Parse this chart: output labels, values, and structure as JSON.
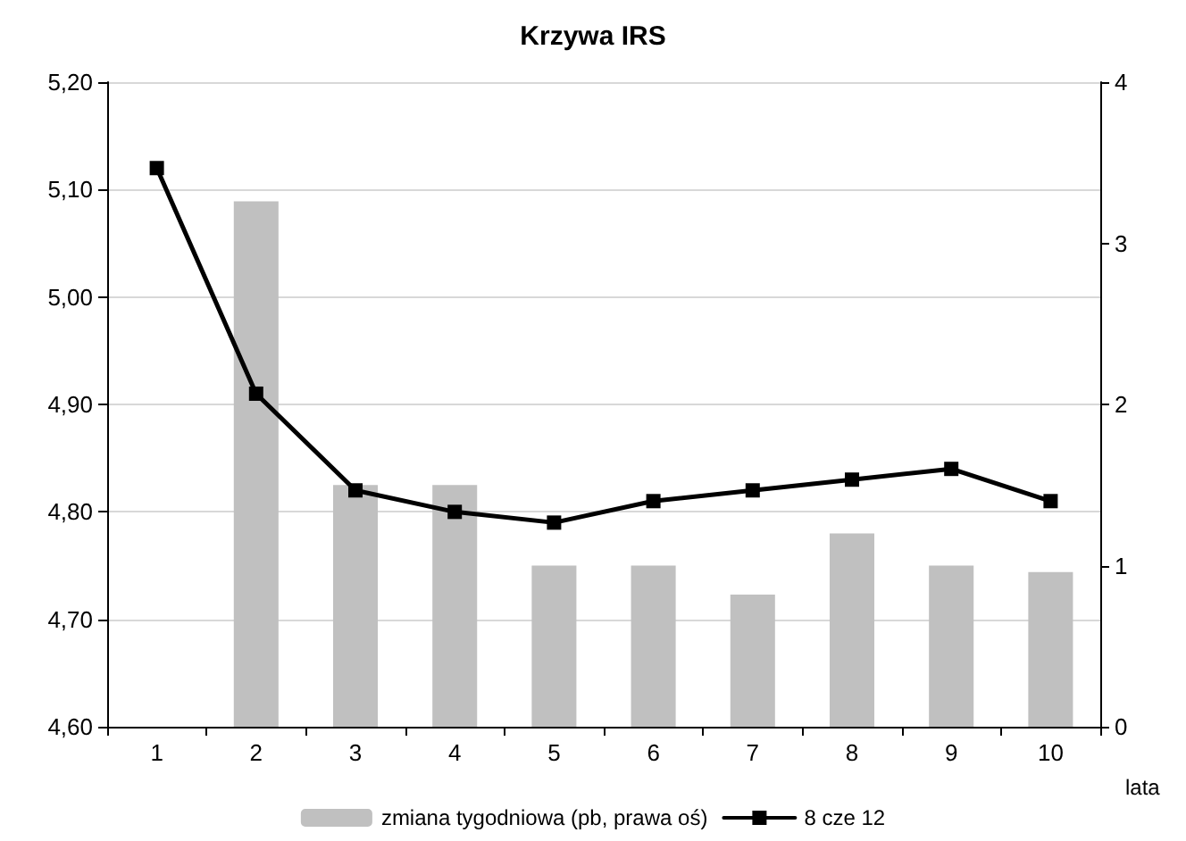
{
  "chart_data": {
    "type": "bar",
    "title": "Krzywa IRS",
    "xlabel": "lata",
    "categories": [
      "1",
      "2",
      "3",
      "4",
      "5",
      "6",
      "7",
      "8",
      "9",
      "10"
    ],
    "series": [
      {
        "name": "zmiana tygodniowa (pb, prawa oś)",
        "axis": "y2",
        "color": "#c0c0c0",
        "values": [
          null,
          3.26,
          1.5,
          1.5,
          1.0,
          1.0,
          0.82,
          1.2,
          1.0,
          0.96
        ]
      },
      {
        "name": "8 cze 12",
        "type": "line",
        "color": "#000000",
        "marker": "square",
        "values": [
          5.12,
          4.91,
          4.82,
          4.8,
          4.79,
          4.81,
          4.82,
          4.83,
          4.84,
          4.81
        ]
      }
    ],
    "ylim": [
      4.6,
      5.2
    ],
    "yticks": [
      {
        "value": 4.6,
        "label": "4,60"
      },
      {
        "value": 4.7,
        "label": "4,70"
      },
      {
        "value": 4.8,
        "label": "4,80"
      },
      {
        "value": 4.9,
        "label": "4,90"
      },
      {
        "value": 5.0,
        "label": "5,00"
      },
      {
        "value": 5.1,
        "label": "5,10"
      },
      {
        "value": 5.2,
        "label": "5,20"
      }
    ],
    "y2lim": [
      0,
      4
    ],
    "y2ticks": [
      0,
      1,
      2,
      3,
      4
    ],
    "grid": "y",
    "legend": "bottom"
  }
}
